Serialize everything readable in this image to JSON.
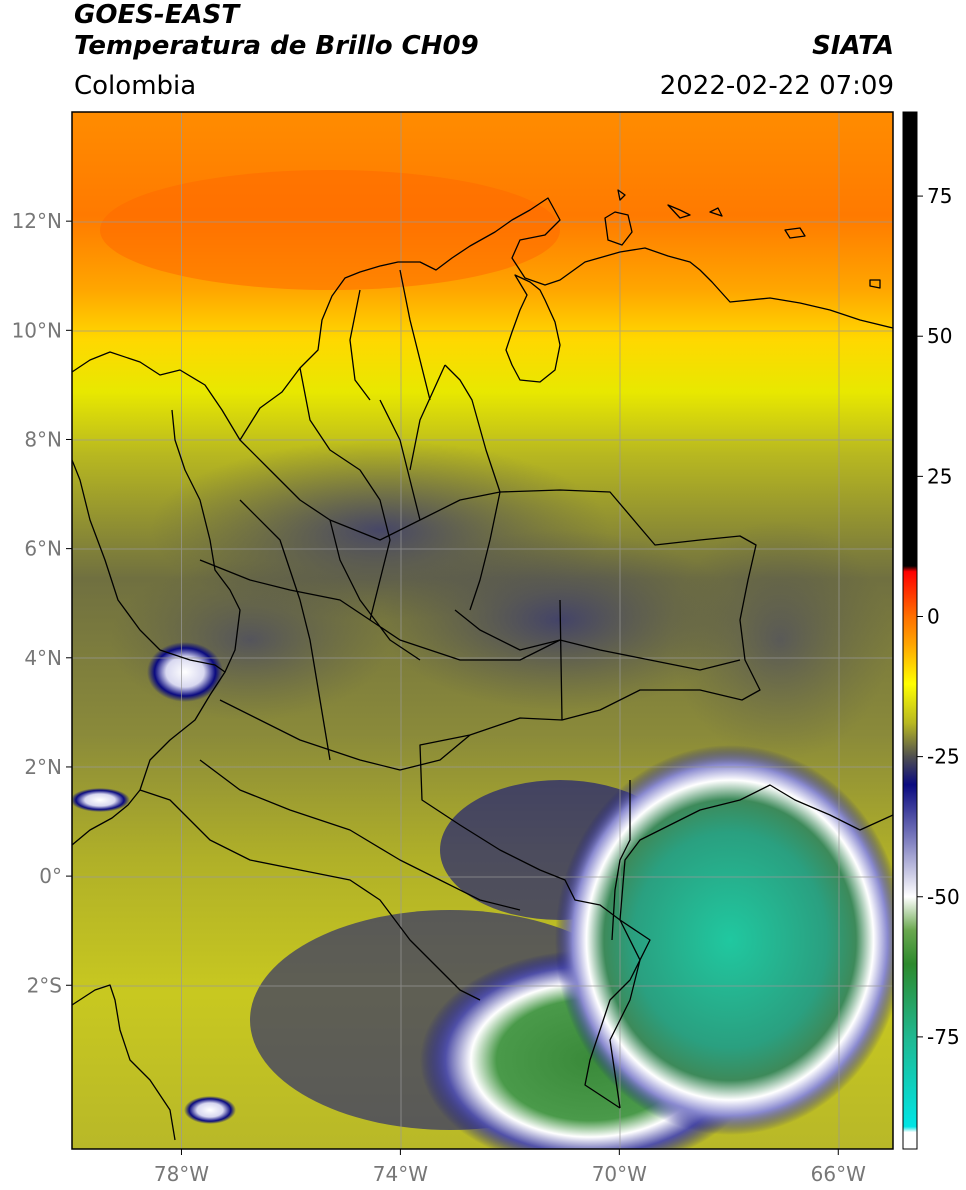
{
  "header": {
    "satellite": "GOES-EAST",
    "product": "Temperatura de Brillo CH09",
    "agency": "SIATA",
    "region": "Colombia",
    "datetime": "2022-02-22 07:09"
  },
  "map": {
    "lon_range": [
      -80,
      -65
    ],
    "lat_range": [
      -5,
      14
    ],
    "lon_ticks": [
      "78°W",
      "74°W",
      "70°W",
      "66°W"
    ],
    "lat_ticks": [
      "12°N",
      "10°N",
      "8°N",
      "6°N",
      "4°N",
      "2°N",
      "0°",
      "2°S"
    ],
    "gridlines": true
  },
  "colorbar": {
    "min": -95,
    "max": 90,
    "ticks": [
      "75",
      "50",
      "25",
      "0",
      "-25",
      "-50",
      "-75"
    ],
    "stops": [
      {
        "v": -95,
        "c": "#ffffff"
      },
      {
        "v": -92,
        "c": "#ffffff"
      },
      {
        "v": -91,
        "c": "#00e5e5"
      },
      {
        "v": -75,
        "c": "#20b890"
      },
      {
        "v": -62,
        "c": "#2d8a2d"
      },
      {
        "v": -56,
        "c": "#6aa84f"
      },
      {
        "v": -50,
        "c": "#ffffff"
      },
      {
        "v": -40,
        "c": "#8080c0"
      },
      {
        "v": -30,
        "c": "#0a0a80"
      },
      {
        "v": -25,
        "c": "#505050"
      },
      {
        "v": -19,
        "c": "#b8b820"
      },
      {
        "v": -12,
        "c": "#ffff00"
      },
      {
        "v": -5,
        "c": "#ffa500"
      },
      {
        "v": 0,
        "c": "#ff7000"
      },
      {
        "v": 8,
        "c": "#ff0000"
      },
      {
        "v": 9,
        "c": "#000000"
      },
      {
        "v": 90,
        "c": "#000000"
      }
    ]
  }
}
